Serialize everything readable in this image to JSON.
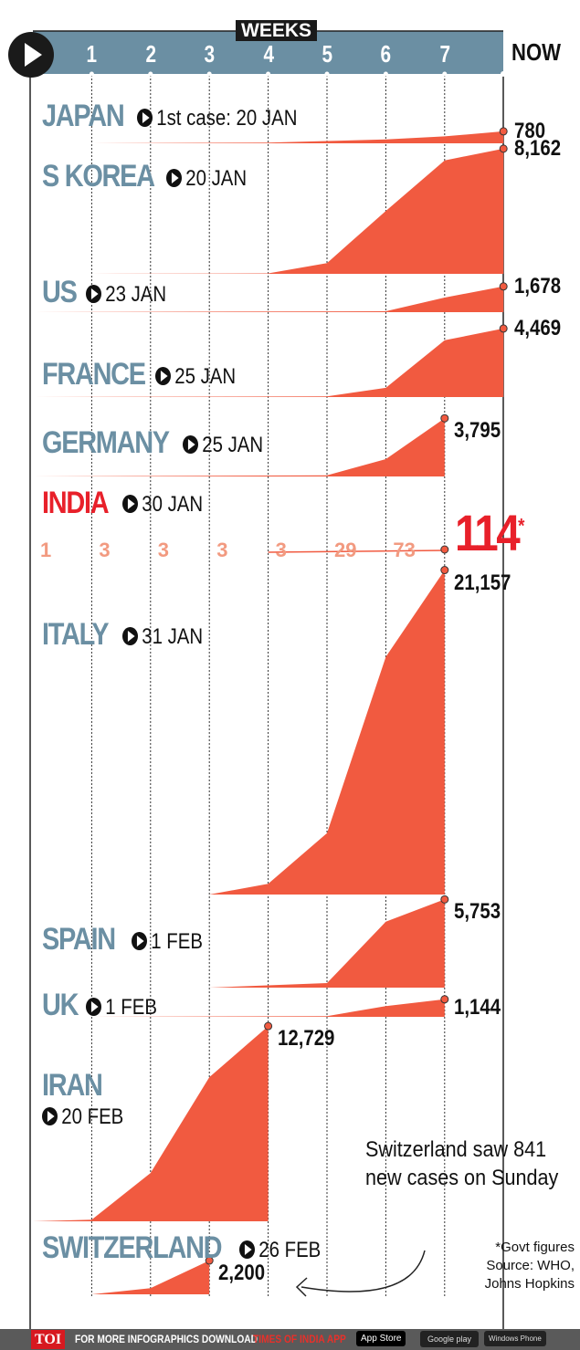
{
  "header": {
    "axis_title": "WEEKS",
    "now_label": "NOW"
  },
  "footer": {
    "brand": "TOI",
    "text": "FOR MORE  INFOGRAPHICS DOWNLOAD",
    "app": "TIMES OF INDIA  APP",
    "stores": [
      "App Store",
      "Google play",
      "Windows Phone"
    ]
  },
  "note": "Switzerland saw 841 new cases on Sunday",
  "source": {
    "line1": "*Govt figures",
    "line2": "Source: WHO,",
    "line3": "Johns Hopkins"
  },
  "colors": {
    "fill": "#f15a40",
    "band": "#6b8fa3",
    "country": "#6b8fa3",
    "india": "#e8202a"
  },
  "chart_data": {
    "type": "area",
    "title": "WEEKS",
    "x_ticks": [
      "1",
      "2",
      "3",
      "4",
      "5",
      "6",
      "7",
      "NOW"
    ],
    "india": {
      "weekly_labels": [
        "1",
        "3",
        "3",
        "3",
        "3",
        "29",
        "73"
      ],
      "now": "114",
      "now_mark": "*"
    },
    "series": [
      {
        "name": "JAPAN",
        "date": "1st case: 20 JAN",
        "label": "780",
        "start": 1,
        "values": [
          [
            1,
            0
          ],
          [
            4,
            50
          ],
          [
            5,
            150
          ],
          [
            6,
            250
          ],
          [
            7,
            450
          ],
          [
            8,
            780
          ]
        ],
        "base": 157
      },
      {
        "name": "S KOREA",
        "date": "20 JAN",
        "label": "8,162",
        "start": 1,
        "values": [
          [
            1,
            0
          ],
          [
            4,
            30
          ],
          [
            5,
            700
          ],
          [
            6,
            4100
          ],
          [
            7,
            7400
          ],
          [
            8,
            8162
          ]
        ],
        "base": 300
      },
      {
        "name": "US",
        "date": "23 JAN",
        "label": "1,678",
        "values": [
          [
            0,
            0
          ],
          [
            6,
            60
          ],
          [
            7,
            950
          ],
          [
            8,
            1678
          ]
        ],
        "base": 342
      },
      {
        "name": "FRANCE",
        "date": "25 JAN",
        "label": "4,469",
        "values": [
          [
            0,
            0
          ],
          [
            5,
            50
          ],
          [
            6,
            600
          ],
          [
            7,
            3700
          ],
          [
            8,
            4469
          ]
        ],
        "base": 435
      },
      {
        "name": "GERMANY",
        "date": "25 JAN",
        "label": "3,795",
        "values": [
          [
            0,
            0
          ],
          [
            5,
            80
          ],
          [
            6,
            1130
          ],
          [
            7,
            3795
          ]
        ],
        "base": 522
      },
      {
        "name": "ITALY",
        "date": "31 JAN",
        "label": "21,157",
        "values": [
          [
            3,
            0
          ],
          [
            4,
            700
          ],
          [
            5,
            4000
          ],
          [
            6,
            15500
          ],
          [
            7,
            21157
          ]
        ],
        "base": 980
      },
      {
        "name": "SPAIN",
        "date": "1 FEB",
        "label": "5,753",
        "values": [
          [
            3,
            0
          ],
          [
            5,
            300
          ],
          [
            6,
            4300
          ],
          [
            7,
            5753
          ]
        ],
        "base": 1082
      },
      {
        "name": "UK",
        "date": "1 FEB",
        "label": "1,144",
        "values": [
          [
            1,
            0
          ],
          [
            5,
            50
          ],
          [
            6,
            700
          ],
          [
            7,
            1144
          ]
        ],
        "base": 1114
      },
      {
        "name": "IRAN",
        "date": "20 FEB",
        "label": "12,729",
        "values": [
          [
            0,
            0
          ],
          [
            1,
            100
          ],
          [
            2,
            3150
          ],
          [
            3,
            9400
          ],
          [
            4,
            12729
          ]
        ],
        "base": 1338
      },
      {
        "name": "SWITZERLAND",
        "date": "26 FEB",
        "label": "2,200",
        "values": [
          [
            1,
            0
          ],
          [
            2,
            400
          ],
          [
            3,
            2200
          ]
        ],
        "base": 1418
      }
    ]
  }
}
